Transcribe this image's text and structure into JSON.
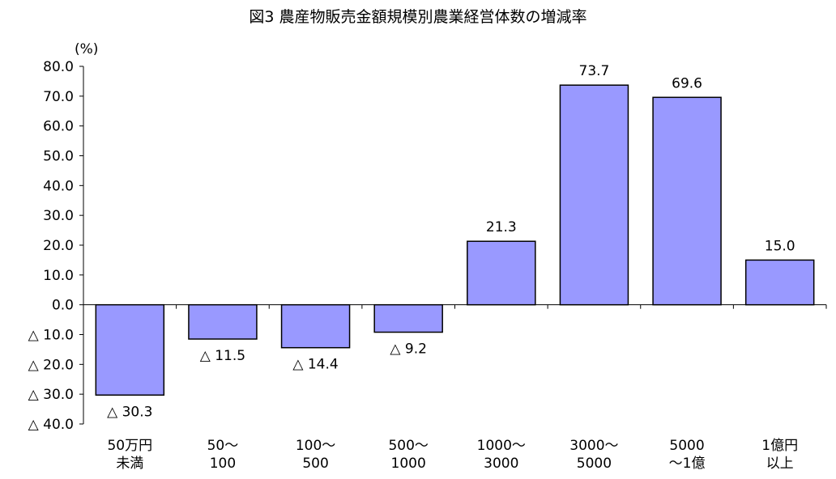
{
  "chart_data": {
    "type": "bar",
    "title": "図3 農産物販売金額規模別農業経営体数の増減率",
    "ylabel": "(%)",
    "xlabel": "",
    "ylim": [
      -40,
      80
    ],
    "yticks": [
      {
        "value": 80,
        "label": "80.0"
      },
      {
        "value": 70,
        "label": "70.0"
      },
      {
        "value": 60,
        "label": "60.0"
      },
      {
        "value": 50,
        "label": "50.0"
      },
      {
        "value": 40,
        "label": "40.0"
      },
      {
        "value": 30,
        "label": "30.0"
      },
      {
        "value": 20,
        "label": "20.0"
      },
      {
        "value": 10,
        "label": "10.0"
      },
      {
        "value": 0,
        "label": "0.0"
      },
      {
        "value": -10,
        "label": "△ 10.0"
      },
      {
        "value": -20,
        "label": "△ 20.0"
      },
      {
        "value": -30,
        "label": "△ 30.0"
      },
      {
        "value": -40,
        "label": "△ 40.0"
      }
    ],
    "categories": [
      [
        "50万円",
        "未満"
      ],
      [
        "50～",
        "100"
      ],
      [
        "100～",
        "500"
      ],
      [
        "500～",
        "1000"
      ],
      [
        "1000～",
        "3000"
      ],
      [
        "3000～",
        "5000"
      ],
      [
        "5000",
        "～1億"
      ],
      [
        "1億円",
        "以上"
      ]
    ],
    "values": [
      -30.3,
      -11.5,
      -14.4,
      -9.2,
      21.3,
      73.7,
      69.6,
      15.0
    ],
    "data_labels": [
      "△ 30.3",
      "△ 11.5",
      "△ 14.4",
      "△ 9.2",
      "21.3",
      "73.7",
      "69.6",
      "15.0"
    ],
    "bar_color": "#9999ff",
    "grid": false
  }
}
